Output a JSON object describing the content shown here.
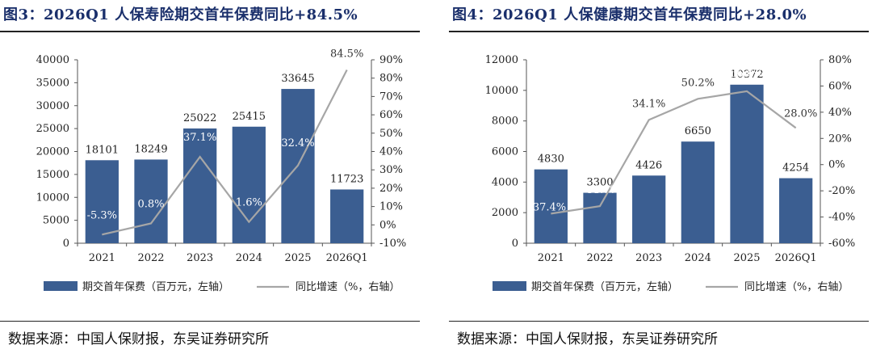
{
  "panels": [
    {
      "title": "图3：2026Q1 人保寿险期交首年保费同比+84.5%",
      "source": "数据来源：中国人保财报，东吴证券研究所",
      "chart_data": {
        "type": "bar",
        "categories": [
          "2021",
          "2022",
          "2023",
          "2024",
          "2025",
          "2026Q1"
        ],
        "series": [
          {
            "name": "期交首年保费（百万元，左轴）",
            "type": "bar",
            "axis": "left",
            "values": [
              18101,
              18249,
              25022,
              25415,
              33645,
              11723
            ],
            "labels": [
              "18101",
              "18249",
              "25022",
              "25415",
              "33645",
              "11723"
            ]
          },
          {
            "name": "同比增速（%，右轴）",
            "type": "line",
            "axis": "right",
            "values": [
              -5.3,
              0.8,
              37.1,
              1.6,
              32.4,
              84.5
            ],
            "labels": [
              "-5.3%",
              "0.8%",
              "37.1%",
              "1.6%",
              "32.4%",
              "84.5%"
            ]
          }
        ],
        "left_axis": {
          "min": 0,
          "max": 40000,
          "step": 5000,
          "ticks": [
            "0",
            "5000",
            "10000",
            "15000",
            "20000",
            "25000",
            "30000",
            "35000",
            "40000"
          ]
        },
        "right_axis": {
          "min": -10,
          "max": 90,
          "step": 10,
          "ticks": [
            "-10%",
            "0%",
            "10%",
            "20%",
            "30%",
            "40%",
            "50%",
            "60%",
            "70%",
            "80%",
            "90%"
          ]
        },
        "legend_position": "bottom",
        "colors": {
          "bar": "#3b5e91",
          "line": "#a6a6a6"
        }
      }
    },
    {
      "title": "图4：2026Q1 人保健康期交首年保费同比+28.0%",
      "source": "数据来源：中国人保财报，东吴证券研究所",
      "chart_data": {
        "type": "bar",
        "categories": [
          "2021",
          "2022",
          "2023",
          "2024",
          "2025",
          "2026Q1"
        ],
        "series": [
          {
            "name": "期交首年保费（百万元，左轴）",
            "type": "bar",
            "axis": "left",
            "values": [
              4830,
              3300,
              4426,
              6650,
              10372,
              4254
            ],
            "labels": [
              "4830",
              "3300",
              "4426",
              "6650",
              "10372",
              "4254"
            ]
          },
          {
            "name": "同比增速（%，右轴）",
            "type": "line",
            "axis": "right",
            "values": [
              -37.4,
              -31.7,
              34.1,
              50.2,
              56.0,
              28.0
            ],
            "labels": [
              "-37.4%",
              "-31.7%",
              "34.1%",
              "50.2%",
              "56.0%",
              "28.0%"
            ]
          }
        ],
        "left_axis": {
          "min": 0,
          "max": 12000,
          "step": 2000,
          "ticks": [
            "0",
            "2000",
            "4000",
            "6000",
            "8000",
            "10000",
            "12000"
          ]
        },
        "right_axis": {
          "min": -60,
          "max": 80,
          "step": 20,
          "ticks": [
            "-60%",
            "-40%",
            "-20%",
            "0%",
            "20%",
            "40%",
            "60%",
            "80%"
          ]
        },
        "legend_position": "bottom",
        "colors": {
          "bar": "#3b5e91",
          "line": "#a6a6a6"
        }
      }
    }
  ]
}
